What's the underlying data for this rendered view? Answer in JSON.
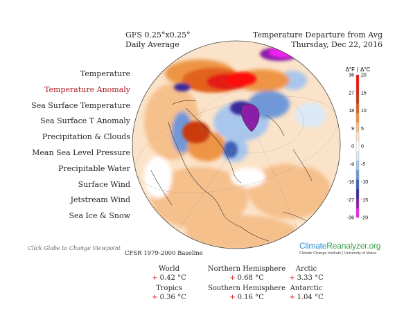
{
  "header_left": {
    "line1": "GFS 0.25°x0.25°",
    "line2": "Daily Average"
  },
  "header_right": {
    "line1": "Temperature Departure from Avg",
    "line2": "Thursday, Dec 22, 2016"
  },
  "menu": [
    {
      "label": "Temperature",
      "active": false
    },
    {
      "label": "Temperature Anomaly",
      "active": true
    },
    {
      "label": "Sea Surface Temperature",
      "active": false
    },
    {
      "label": "Sea Surface T Anomaly",
      "active": false
    },
    {
      "label": "Precipitation & Clouds",
      "active": false
    },
    {
      "label": "Mean Sea Level Pressure",
      "active": false
    },
    {
      "label": "Precipitable Water",
      "active": false
    },
    {
      "label": "Surface Wind",
      "active": false
    },
    {
      "label": "Jetstream Wind",
      "active": false
    },
    {
      "label": "Sea Ice & Snow",
      "active": false
    }
  ],
  "hint": "Click Globe to Change Viewpoint",
  "legend": {
    "header_f": "Δ°F",
    "header_sep": "|",
    "header_c": "Δ°C",
    "f_ticks": [
      "36",
      "27",
      "18",
      "9",
      "0",
      "-9",
      "-18",
      "-27",
      "-36"
    ],
    "c_ticks": [
      "20",
      "15",
      "10",
      "5",
      "0",
      "-5",
      "-10",
      "-15",
      "-20"
    ],
    "colors": [
      "#f020f0",
      "#8a1ea8",
      "#3a2a9a",
      "#3f5fb8",
      "#6f98d8",
      "#a9c6ec",
      "#dbe9f7",
      "#ffffff",
      "#fbe3c9",
      "#f6c08c",
      "#ee9444",
      "#e2621c",
      "#c93a0e",
      "#e41d12",
      "#ff0d0d"
    ]
  },
  "brand": {
    "name_part1": "Climate",
    "name_part2": "Reanalyzer",
    "name_part3": ".org",
    "subtitle": "Climate Change Institute | University of Maine"
  },
  "baseline": "CFSR 1979-2000 Baseline",
  "stats": {
    "world": {
      "label": "World",
      "sign": "+",
      "value": "0.42 °C"
    },
    "nh": {
      "label": "Northern Hemisphere",
      "sign": "+",
      "value": "0.68 °C"
    },
    "arctic": {
      "label": "Arctic",
      "sign": "+",
      "value": "3.33 °C"
    },
    "tropics": {
      "label": "Tropics",
      "sign": "+",
      "value": "0.36 °C"
    },
    "sh": {
      "label": "Southern Hemisphere",
      "sign": "+",
      "value": "0.16 °C"
    },
    "antarctic": {
      "label": "Antarctic",
      "sign": "+",
      "value": "1.04 °C"
    }
  }
}
